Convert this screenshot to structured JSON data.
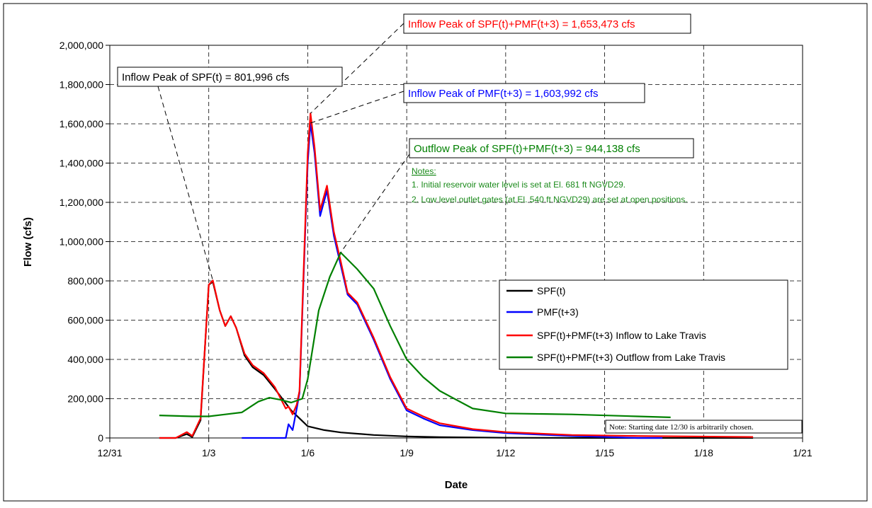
{
  "chart_data": {
    "type": "line",
    "xlabel": "Date",
    "ylabel": "Flow (cfs)",
    "x_axis": {
      "type": "date",
      "range": [
        "12/31",
        "1/21"
      ],
      "tick_labels": [
        "12/31",
        "1/3",
        "1/6",
        "1/9",
        "1/12",
        "1/15",
        "1/18",
        "1/21"
      ]
    },
    "y_axis": {
      "range": [
        0,
        2000000
      ],
      "tick_values": [
        0,
        200000,
        400000,
        600000,
        800000,
        1000000,
        1200000,
        1400000,
        1600000,
        1800000,
        2000000
      ],
      "tick_labels": [
        "0",
        "200,000",
        "400,000",
        "600,000",
        "800,000",
        "1,000,000",
        "1,200,000",
        "1,400,000",
        "1,600,000",
        "1,800,000",
        "2,000,000"
      ]
    },
    "grid": true,
    "legend_position": "right",
    "series": [
      {
        "name": "SPF(t)",
        "color": "#000000",
        "points": [
          [
            "1/1 12:00",
            0
          ],
          [
            "1/2 00:00",
            0
          ],
          [
            "1/2 08:00",
            20000
          ],
          [
            "1/2 12:00",
            5000
          ],
          [
            "1/2 18:00",
            90000
          ],
          [
            "1/3 00:00",
            780000
          ],
          [
            "1/3 03:00",
            795000
          ],
          [
            "1/3 08:00",
            650000
          ],
          [
            "1/3 12:00",
            570000
          ],
          [
            "1/3 16:00",
            620000
          ],
          [
            "1/3 20:00",
            560000
          ],
          [
            "1/4 02:00",
            420000
          ],
          [
            "1/4 08:00",
            360000
          ],
          [
            "1/4 16:00",
            320000
          ],
          [
            "1/5 00:00",
            250000
          ],
          [
            "1/5 12:00",
            140000
          ],
          [
            "1/6 00:00",
            60000
          ],
          [
            "1/6 12:00",
            40000
          ],
          [
            "1/7 00:00",
            28000
          ],
          [
            "1/8 00:00",
            15000
          ],
          [
            "1/9 00:00",
            8000
          ],
          [
            "1/10 00:00",
            4000
          ],
          [
            "1/12 00:00",
            1000
          ],
          [
            "1/15 00:00",
            0
          ],
          [
            "1/19 12:00",
            0
          ]
        ]
      },
      {
        "name": "PMF(t+3)",
        "color": "#0000ff",
        "points": [
          [
            "1/4 00:00",
            0
          ],
          [
            "1/5 08:00",
            0
          ],
          [
            "1/5 10:00",
            70000
          ],
          [
            "1/5 13:00",
            40000
          ],
          [
            "1/5 16:00",
            150000
          ],
          [
            "1/5 18:00",
            230000
          ],
          [
            "1/5 21:00",
            820000
          ],
          [
            "1/6 00:00",
            1400000
          ],
          [
            "1/6 02:00",
            1604000
          ],
          [
            "1/6 05:00",
            1450000
          ],
          [
            "1/6 09:00",
            1130000
          ],
          [
            "1/6 14:00",
            1260000
          ],
          [
            "1/6 19:00",
            1030000
          ],
          [
            "1/7 00:00",
            880000
          ],
          [
            "1/7 05:00",
            730000
          ],
          [
            "1/7 12:00",
            680000
          ],
          [
            "1/8 00:00",
            500000
          ],
          [
            "1/8 12:00",
            300000
          ],
          [
            "1/9 00:00",
            140000
          ],
          [
            "1/9 12:00",
            100000
          ],
          [
            "1/10 00:00",
            65000
          ],
          [
            "1/11 00:00",
            40000
          ],
          [
            "1/12 00:00",
            25000
          ],
          [
            "1/14 00:00",
            10000
          ],
          [
            "1/16 00:00",
            0
          ],
          [
            "1/16 18:00",
            0
          ]
        ]
      },
      {
        "name": "SPF(t)+PMF(t+3) Inflow to Lake Travis",
        "color": "#ff0000",
        "points": [
          [
            "1/1 12:00",
            0
          ],
          [
            "1/2 00:00",
            0
          ],
          [
            "1/2 08:00",
            30000
          ],
          [
            "1/2 12:00",
            10000
          ],
          [
            "1/2 18:00",
            100000
          ],
          [
            "1/3 00:00",
            780000
          ],
          [
            "1/3 03:00",
            801996
          ],
          [
            "1/3 08:00",
            650000
          ],
          [
            "1/3 12:00",
            570000
          ],
          [
            "1/3 16:00",
            620000
          ],
          [
            "1/3 20:00",
            560000
          ],
          [
            "1/4 02:00",
            430000
          ],
          [
            "1/4 08:00",
            370000
          ],
          [
            "1/4 16:00",
            330000
          ],
          [
            "1/5 00:00",
            260000
          ],
          [
            "1/5 08:00",
            150000
          ],
          [
            "1/5 10:00",
            160000
          ],
          [
            "1/5 13:00",
            120000
          ],
          [
            "1/5 16:00",
            170000
          ],
          [
            "1/5 18:00",
            240000
          ],
          [
            "1/5 21:00",
            850000
          ],
          [
            "1/6 00:00",
            1450000
          ],
          [
            "1/6 02:00",
            1653473
          ],
          [
            "1/6 05:00",
            1480000
          ],
          [
            "1/6 09:00",
            1160000
          ],
          [
            "1/6 14:00",
            1285000
          ],
          [
            "1/6 19:00",
            1050000
          ],
          [
            "1/7 00:00",
            900000
          ],
          [
            "1/7 05:00",
            740000
          ],
          [
            "1/7 12:00",
            690000
          ],
          [
            "1/8 00:00",
            510000
          ],
          [
            "1/8 12:00",
            310000
          ],
          [
            "1/9 00:00",
            150000
          ],
          [
            "1/9 12:00",
            110000
          ],
          [
            "1/10 00:00",
            75000
          ],
          [
            "1/11 00:00",
            45000
          ],
          [
            "1/12 00:00",
            30000
          ],
          [
            "1/14 00:00",
            15000
          ],
          [
            "1/16 00:00",
            10000
          ],
          [
            "1/19 12:00",
            5000
          ]
        ]
      },
      {
        "name": "SPF(t)+PMF(t+3) Outflow from Lake Travis",
        "color": "#008000",
        "points": [
          [
            "1/1 12:00",
            115000
          ],
          [
            "1/2 12:00",
            110000
          ],
          [
            "1/3 00:00",
            110000
          ],
          [
            "1/3 12:00",
            120000
          ],
          [
            "1/4 00:00",
            130000
          ],
          [
            "1/4 12:00",
            185000
          ],
          [
            "1/4 20:00",
            205000
          ],
          [
            "1/5 04:00",
            195000
          ],
          [
            "1/5 12:00",
            180000
          ],
          [
            "1/5 20:00",
            200000
          ],
          [
            "1/6 00:00",
            300000
          ],
          [
            "1/6 08:00",
            650000
          ],
          [
            "1/6 16:00",
            820000
          ],
          [
            "1/7 00:00",
            944138
          ],
          [
            "1/7 12:00",
            860000
          ],
          [
            "1/8 00:00",
            760000
          ],
          [
            "1/8 12:00",
            570000
          ],
          [
            "1/9 00:00",
            400000
          ],
          [
            "1/9 12:00",
            310000
          ],
          [
            "1/10 00:00",
            240000
          ],
          [
            "1/11 00:00",
            150000
          ],
          [
            "1/12 00:00",
            125000
          ],
          [
            "1/14 00:00",
            120000
          ],
          [
            "1/16 00:00",
            110000
          ],
          [
            "1/17 00:00",
            105000
          ]
        ]
      }
    ],
    "annotations": [
      {
        "text": "Inflow Peak of SPF(t)  = 801,996 cfs",
        "color": "#000000",
        "target": [
          "1/3 03:00",
          801996
        ]
      },
      {
        "text": "Inflow Peak of SPF(t)+PMF(t+3) = 1,653,473 cfs",
        "color": "#ff0000",
        "target": [
          "1/6 02:00",
          1653473
        ]
      },
      {
        "text": "Inflow Peak of PMF(t+3) = 1,603,992 cfs",
        "color": "#0000ff",
        "target": [
          "1/6 02:00",
          1604000
        ]
      },
      {
        "text": "Outflow Peak of SPF(t)+PMF(t+3) = 944,138 cfs",
        "color": "#008000",
        "target": [
          "1/7 00:00",
          944138
        ]
      }
    ],
    "notes": {
      "heading": "Notes:",
      "lines": [
        "1. Initial reservoir water level is set at El. 681 ft NGVD29.",
        "2. Low level outlet gates (at El. 540 ft NGVD29) are set at open positions."
      ],
      "color": "#1a8a1a"
    },
    "footnote": "Note: Starting date 12/30 is arbitrarily chosen."
  }
}
